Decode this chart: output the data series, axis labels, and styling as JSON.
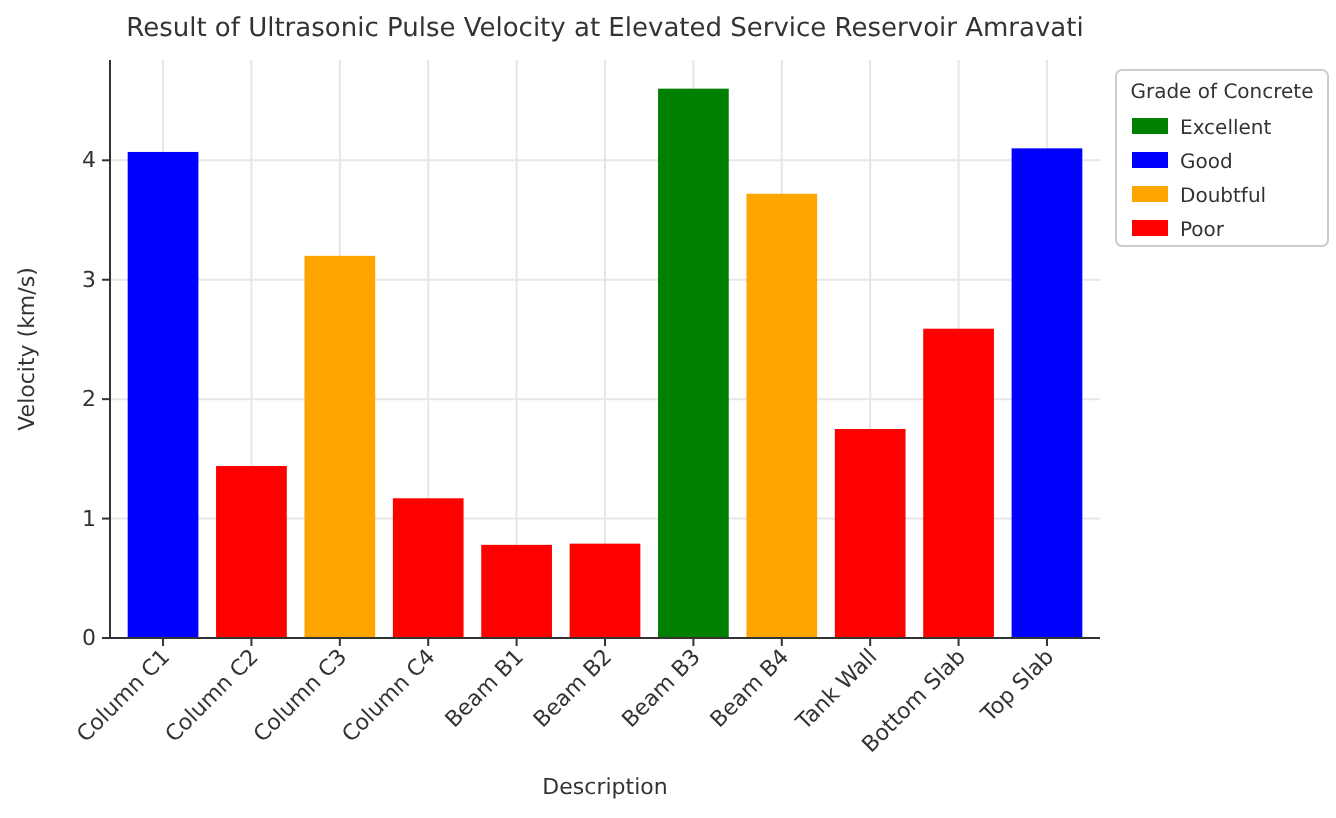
{
  "chart_data": {
    "type": "bar",
    "title": "Result of Ultrasonic Pulse Velocity at Elevated Service Reservoir Amravati",
    "xlabel": "Description",
    "ylabel": "Velocity (km/s)",
    "legend_title": "Grade of Concrete",
    "categories": [
      "Column C1",
      "Column C2",
      "Column C3",
      "Column C4",
      "Beam B1",
      "Beam B2",
      "Beam B3",
      "Beam B4",
      "Tank Wall",
      "Bottom Slab",
      "Top Slab"
    ],
    "series": [
      {
        "name": "Excellent",
        "color": "#008000",
        "values": [
          null,
          null,
          null,
          null,
          null,
          null,
          4.6,
          null,
          null,
          null,
          null
        ]
      },
      {
        "name": "Good",
        "color": "#0000ff",
        "values": [
          4.07,
          null,
          null,
          null,
          null,
          null,
          null,
          null,
          null,
          null,
          4.1
        ]
      },
      {
        "name": "Doubtful",
        "color": "#ffa500",
        "values": [
          null,
          null,
          3.2,
          null,
          null,
          null,
          null,
          3.72,
          null,
          null,
          null
        ]
      },
      {
        "name": "Poor",
        "color": "#ff0000",
        "values": [
          null,
          1.44,
          null,
          1.17,
          0.78,
          0.79,
          null,
          null,
          1.75,
          2.59,
          null
        ]
      }
    ],
    "ylim": [
      0,
      4.84
    ],
    "yticks": [
      0,
      1,
      2,
      3,
      4
    ],
    "grid": true,
    "legend": "right"
  }
}
